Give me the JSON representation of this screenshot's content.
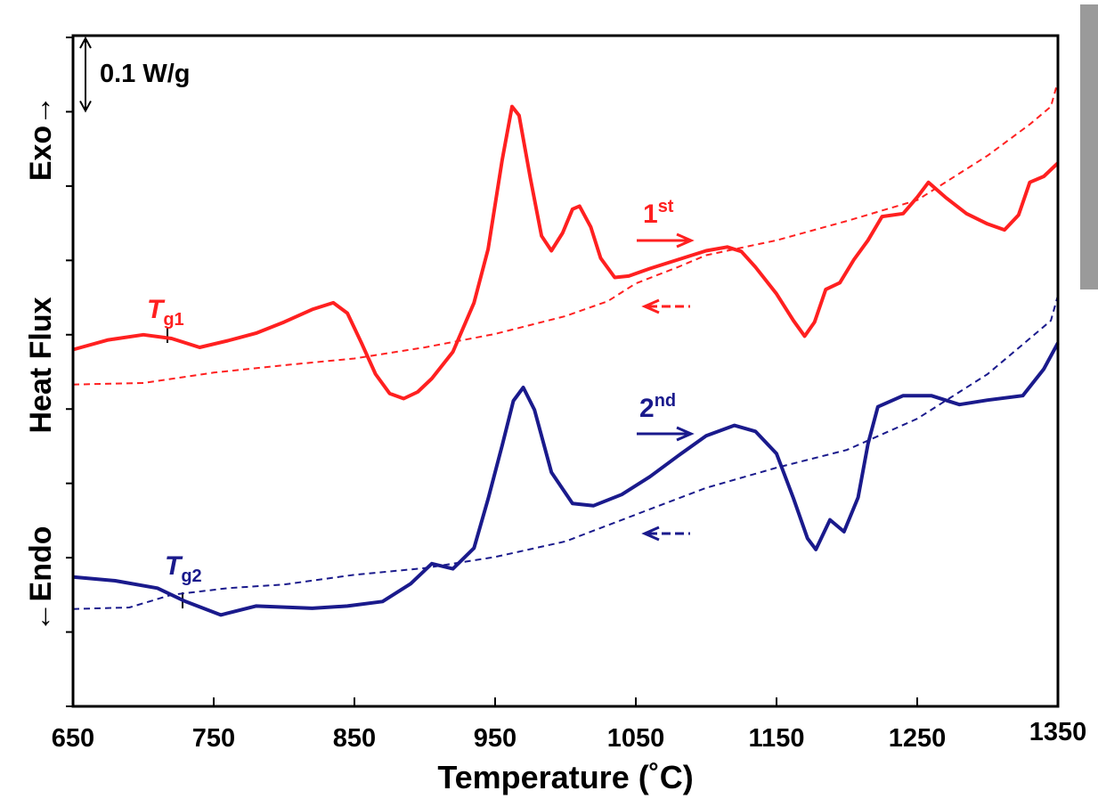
{
  "chart_data": {
    "type": "line",
    "x_label": "Temperature (˚C)",
    "y_label_parts": [
      "←Endo",
      "Heat Flux",
      "Exo→"
    ],
    "xlim": [
      650,
      1350
    ],
    "xticks": [
      650,
      750,
      850,
      950,
      1050,
      1150,
      1250,
      1350
    ],
    "ylim": [
      0,
      0.9
    ],
    "yticks": [
      0,
      0.1,
      0.2,
      0.3,
      0.4,
      0.5,
      0.6,
      0.7,
      0.8,
      0.9
    ],
    "scale_bar": {
      "value": 0.1,
      "label": "0.1 W/g"
    },
    "series": [
      {
        "color": "#ff2020",
        "style": "solid",
        "x": [
          650,
          675,
          700,
          720,
          740,
          760,
          780,
          800,
          820,
          835,
          845,
          855,
          865,
          875,
          885,
          895,
          905,
          920,
          935,
          945,
          955,
          962,
          967,
          975,
          983,
          990,
          998,
          1005,
          1010,
          1018,
          1025,
          1035,
          1045,
          1060,
          1080,
          1100,
          1115,
          1125,
          1135,
          1150,
          1162,
          1170,
          1177,
          1185,
          1195,
          1205,
          1215,
          1225,
          1240,
          1250,
          1258,
          1270,
          1285,
          1300,
          1312,
          1322,
          1330,
          1340,
          1350
        ],
        "values": [
          0.48,
          0.493,
          0.5,
          0.495,
          0.483,
          0.492,
          0.502,
          0.517,
          0.534,
          0.543,
          0.529,
          0.489,
          0.447,
          0.421,
          0.414,
          0.423,
          0.441,
          0.477,
          0.543,
          0.615,
          0.735,
          0.807,
          0.795,
          0.711,
          0.633,
          0.613,
          0.637,
          0.669,
          0.673,
          0.645,
          0.603,
          0.577,
          0.579,
          0.589,
          0.601,
          0.613,
          0.618,
          0.612,
          0.591,
          0.555,
          0.519,
          0.498,
          0.517,
          0.561,
          0.57,
          0.601,
          0.627,
          0.659,
          0.663,
          0.685,
          0.705,
          0.685,
          0.663,
          0.649,
          0.641,
          0.661,
          0.705,
          0.713,
          0.731
        ]
      },
      {
        "color": "#ff2020",
        "style": "dashed",
        "x": [
          650,
          700,
          750,
          800,
          850,
          900,
          950,
          1000,
          1030,
          1050,
          1080,
          1100,
          1150,
          1200,
          1250,
          1300,
          1330,
          1345,
          1350
        ],
        "values": [
          0.433,
          0.435,
          0.449,
          0.459,
          0.468,
          0.483,
          0.501,
          0.525,
          0.545,
          0.569,
          0.591,
          0.607,
          0.627,
          0.653,
          0.681,
          0.741,
          0.783,
          0.807,
          0.841
        ]
      },
      {
        "color": "#1a1a8c",
        "style": "solid",
        "x": [
          650,
          680,
          710,
          730,
          755,
          780,
          820,
          845,
          870,
          890,
          905,
          920,
          935,
          945,
          955,
          963,
          970,
          978,
          990,
          1005,
          1020,
          1040,
          1060,
          1080,
          1100,
          1120,
          1135,
          1150,
          1162,
          1172,
          1178,
          1188,
          1198,
          1208,
          1215,
          1222,
          1240,
          1260,
          1280,
          1300,
          1325,
          1340,
          1350
        ],
        "values": [
          0.174,
          0.169,
          0.159,
          0.141,
          0.123,
          0.135,
          0.132,
          0.135,
          0.141,
          0.165,
          0.192,
          0.185,
          0.213,
          0.279,
          0.351,
          0.411,
          0.429,
          0.399,
          0.315,
          0.273,
          0.27,
          0.285,
          0.309,
          0.337,
          0.364,
          0.378,
          0.37,
          0.34,
          0.28,
          0.226,
          0.211,
          0.251,
          0.235,
          0.281,
          0.353,
          0.403,
          0.418,
          0.418,
          0.406,
          0.412,
          0.418,
          0.454,
          0.489
        ]
      },
      {
        "color": "#1a1a8c",
        "style": "dashed",
        "x": [
          650,
          690,
          720,
          760,
          800,
          850,
          900,
          950,
          1000,
          1050,
          1100,
          1150,
          1200,
          1250,
          1300,
          1330,
          1345,
          1350
        ],
        "values": [
          0.131,
          0.133,
          0.15,
          0.159,
          0.164,
          0.177,
          0.186,
          0.201,
          0.222,
          0.258,
          0.294,
          0.321,
          0.345,
          0.387,
          0.447,
          0.495,
          0.519,
          0.553
        ]
      }
    ],
    "annotations": [
      {
        "text": "1",
        "sup": "st"
      },
      {
        "text": "2",
        "sup": "nd"
      },
      {
        "text": "T",
        "sub": "g1"
      },
      {
        "text": "T",
        "sub": "g2"
      }
    ]
  }
}
